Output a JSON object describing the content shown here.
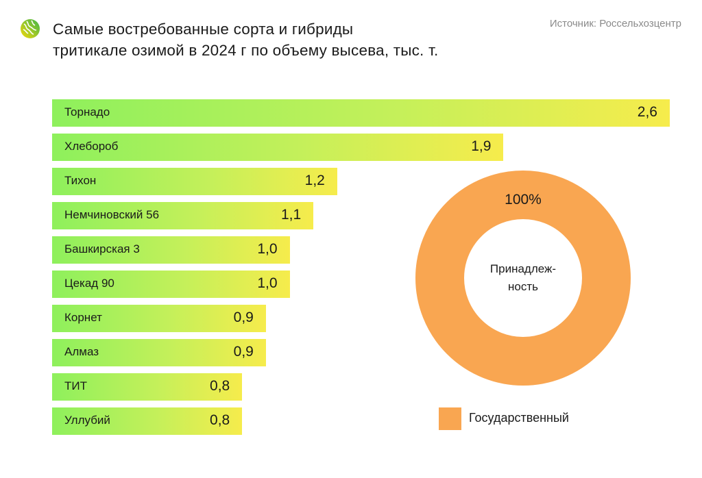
{
  "header": {
    "title_line1": "Самые востребованные сорта и гибриды",
    "title_line2": "тритикале озимой в 2024 г по объему высева, тыс. т.",
    "source": "Источник: Россельхозцентр"
  },
  "chart_data": [
    {
      "type": "bar",
      "orientation": "horizontal",
      "title": "Самые востребованные сорта и гибриды тритикале озимой в 2024 г по объему высева, тыс. т.",
      "categories": [
        "Торнадо",
        "Хлебороб",
        "Тихон",
        "Немчиновский 56",
        "Башкирская 3",
        "Цекад 90",
        "Корнет",
        "Алмаз",
        "ТИТ",
        "Уллубий"
      ],
      "values": [
        2.6,
        1.9,
        1.2,
        1.1,
        1.0,
        1.0,
        0.9,
        0.9,
        0.8,
        0.8
      ],
      "value_labels": [
        "2,6",
        "1,9",
        "1,2",
        "1,1",
        "1,0",
        "1,0",
        "0,9",
        "0,9",
        "0,8",
        "0,8"
      ],
      "xlim": [
        0,
        2.6
      ],
      "grid": false,
      "colors": {
        "start": "#8ef05c",
        "end": "#f6ec4c"
      }
    },
    {
      "type": "pie",
      "donut": true,
      "center_label": [
        "Принадлеж-",
        "ность"
      ],
      "slices": [
        {
          "name": "Государственный",
          "value": 100,
          "label": "100%",
          "color": "#f9a651"
        }
      ],
      "legend_placement": "bottom"
    }
  ]
}
